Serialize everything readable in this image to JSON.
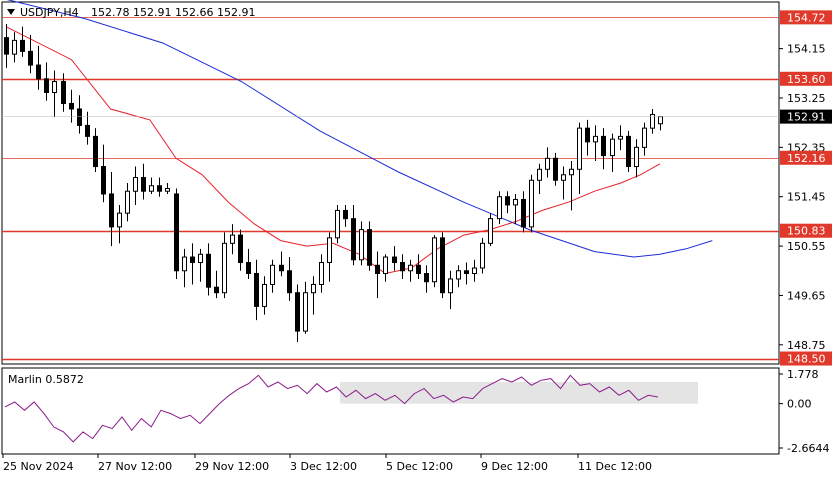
{
  "header": {
    "symbol": "USDJPY,H4",
    "ohlc": "152.78 152.91 152.66 152.91"
  },
  "indicator": {
    "name": "Marlin 0.5872",
    "ticks": [
      "1.778",
      "0.00",
      "-2.6644"
    ]
  },
  "colors": {
    "candle": "#000000",
    "ma_fast": "#e8202a",
    "ma_slow": "#1a2bd6",
    "level_line": "#e0382a",
    "level_box": "#e0382a",
    "marlin": "#8b1a8b",
    "marlin_zone": "#d9d9d9"
  },
  "chart_data": {
    "type": "candlestick",
    "symbol": "USDJPY",
    "timeframe": "H4",
    "ylim": [
      148.4,
      155.0
    ],
    "price_ticks": [
      "154.15",
      "153.25",
      "152.35",
      "151.45",
      "150.55",
      "149.65",
      "148.75"
    ],
    "x_labels": [
      "25 Nov 2024",
      "27 Nov 12:00",
      "29 Nov 12:00",
      "3 Dec 12:00",
      "5 Dec 12:00",
      "9 Dec 12:00",
      "11 Dec 12:00"
    ],
    "current_price": "152.91",
    "levels": [
      {
        "label": "154.72",
        "value": 154.72,
        "style": "thin"
      },
      {
        "label": "153.60",
        "value": 153.6,
        "style": "thick"
      },
      {
        "label": "152.16",
        "value": 152.16,
        "style": "thin"
      },
      {
        "label": "150.83",
        "value": 150.83,
        "style": "thick"
      },
      {
        "label": "148.50",
        "value": 148.5,
        "style": "thick"
      }
    ],
    "candles": [
      [
        154.35,
        154.6,
        153.8,
        154.05
      ],
      [
        154.05,
        154.45,
        153.9,
        154.3
      ],
      [
        154.3,
        154.55,
        154.0,
        154.1
      ],
      [
        154.1,
        154.4,
        153.7,
        153.85
      ],
      [
        153.85,
        154.2,
        153.4,
        153.6
      ],
      [
        153.6,
        153.9,
        153.2,
        153.35
      ],
      [
        153.35,
        153.75,
        152.9,
        153.55
      ],
      [
        153.55,
        153.7,
        153.0,
        153.15
      ],
      [
        153.15,
        153.4,
        152.8,
        153.05
      ],
      [
        153.05,
        153.3,
        152.6,
        152.75
      ],
      [
        152.75,
        153.0,
        152.4,
        152.55
      ],
      [
        152.55,
        152.7,
        151.9,
        152.0
      ],
      [
        152.0,
        152.4,
        151.35,
        151.5
      ],
      [
        151.5,
        151.9,
        150.55,
        150.9
      ],
      [
        150.9,
        151.3,
        150.6,
        151.15
      ],
      [
        151.15,
        151.7,
        151.0,
        151.55
      ],
      [
        151.55,
        152.0,
        151.3,
        151.8
      ],
      [
        151.8,
        152.05,
        151.4,
        151.55
      ],
      [
        151.55,
        151.8,
        151.5,
        151.65
      ],
      [
        151.65,
        151.8,
        151.45,
        151.55
      ],
      [
        151.55,
        151.7,
        151.5,
        151.6
      ],
      [
        151.5,
        151.6,
        149.95,
        150.1
      ],
      [
        150.1,
        150.5,
        149.8,
        150.35
      ],
      [
        150.35,
        150.6,
        149.85,
        150.25
      ],
      [
        150.25,
        150.5,
        149.9,
        150.4
      ],
      [
        150.4,
        150.6,
        149.65,
        149.8
      ],
      [
        149.8,
        150.1,
        149.6,
        149.7
      ],
      [
        149.7,
        150.8,
        149.6,
        150.6
      ],
      [
        150.6,
        150.95,
        150.4,
        150.75
      ],
      [
        150.75,
        150.85,
        150.1,
        150.25
      ],
      [
        150.25,
        150.5,
        149.95,
        150.05
      ],
      [
        150.05,
        150.3,
        149.2,
        149.45
      ],
      [
        149.45,
        150.0,
        149.3,
        149.85
      ],
      [
        149.85,
        150.3,
        149.7,
        150.2
      ],
      [
        150.2,
        150.45,
        150.0,
        150.1
      ],
      [
        150.1,
        150.35,
        149.55,
        149.7
      ],
      [
        149.7,
        149.85,
        148.8,
        149.0
      ],
      [
        149.0,
        149.9,
        148.95,
        149.7
      ],
      [
        149.7,
        150.0,
        149.3,
        149.85
      ],
      [
        149.85,
        150.4,
        149.7,
        150.25
      ],
      [
        150.25,
        150.8,
        149.9,
        150.7
      ],
      [
        150.7,
        151.3,
        150.6,
        151.2
      ],
      [
        151.2,
        151.3,
        150.9,
        151.05
      ],
      [
        151.05,
        151.3,
        150.2,
        150.3
      ],
      [
        150.3,
        151.0,
        150.2,
        150.85
      ],
      [
        150.85,
        151.0,
        150.1,
        150.2
      ],
      [
        150.2,
        150.45,
        149.6,
        150.05
      ],
      [
        150.05,
        150.4,
        149.9,
        150.35
      ],
      [
        150.35,
        150.55,
        150.1,
        150.25
      ],
      [
        150.25,
        150.4,
        149.95,
        150.1
      ],
      [
        150.1,
        150.3,
        149.9,
        150.2
      ],
      [
        150.2,
        150.4,
        149.95,
        150.05
      ],
      [
        150.05,
        150.2,
        149.7,
        149.9
      ],
      [
        149.9,
        150.75,
        149.8,
        150.7
      ],
      [
        150.7,
        150.8,
        149.6,
        149.7
      ],
      [
        149.7,
        150.1,
        149.4,
        149.95
      ],
      [
        149.95,
        150.2,
        149.8,
        150.1
      ],
      [
        150.1,
        150.25,
        149.85,
        150.05
      ],
      [
        150.05,
        150.3,
        149.9,
        150.15
      ],
      [
        150.15,
        150.7,
        150.05,
        150.6
      ],
      [
        150.6,
        151.15,
        150.55,
        151.05
      ],
      [
        151.05,
        151.55,
        150.95,
        151.45
      ],
      [
        151.45,
        151.55,
        151.15,
        151.3
      ],
      [
        151.3,
        151.5,
        150.95,
        151.4
      ],
      [
        151.4,
        151.55,
        150.8,
        150.9
      ],
      [
        150.9,
        151.85,
        150.8,
        151.75
      ],
      [
        151.75,
        152.05,
        151.5,
        151.95
      ],
      [
        151.95,
        152.35,
        151.8,
        152.15
      ],
      [
        152.15,
        152.25,
        151.65,
        151.75
      ],
      [
        151.75,
        152.0,
        151.4,
        151.85
      ],
      [
        151.85,
        152.1,
        151.2,
        151.95
      ],
      [
        151.95,
        152.8,
        151.5,
        152.7
      ],
      [
        152.7,
        152.85,
        152.2,
        152.45
      ],
      [
        152.45,
        152.75,
        152.1,
        152.55
      ],
      [
        152.55,
        152.7,
        151.95,
        152.2
      ],
      [
        152.2,
        152.6,
        151.9,
        152.5
      ],
      [
        152.5,
        152.75,
        152.3,
        152.55
      ],
      [
        152.55,
        152.65,
        151.9,
        152.0
      ],
      [
        152.0,
        152.5,
        151.8,
        152.35
      ],
      [
        152.35,
        152.8,
        152.2,
        152.7
      ],
      [
        152.7,
        153.05,
        152.6,
        152.95
      ],
      [
        152.78,
        152.91,
        152.66,
        152.91
      ]
    ],
    "ma_fast": [
      [
        0,
        154.55
      ],
      [
        10,
        153.95
      ],
      [
        16,
        153.05
      ],
      [
        22,
        152.85
      ],
      [
        26,
        152.15
      ],
      [
        30,
        151.85
      ],
      [
        34,
        151.35
      ],
      [
        38,
        150.95
      ],
      [
        42,
        150.65
      ],
      [
        46,
        150.55
      ],
      [
        50,
        150.6
      ],
      [
        54,
        150.4
      ],
      [
        58,
        150.05
      ],
      [
        62,
        150.15
      ],
      [
        66,
        150.5
      ],
      [
        70,
        150.75
      ],
      [
        74,
        150.85
      ],
      [
        78,
        151.0
      ],
      [
        82,
        151.2
      ],
      [
        86,
        151.35
      ],
      [
        90,
        151.55
      ],
      [
        94,
        151.7
      ],
      [
        97,
        151.85
      ],
      [
        100,
        152.05
      ]
    ],
    "ma_slow": [
      [
        0,
        155.05
      ],
      [
        12,
        154.7
      ],
      [
        24,
        154.25
      ],
      [
        36,
        153.55
      ],
      [
        48,
        152.65
      ],
      [
        60,
        151.9
      ],
      [
        70,
        151.35
      ],
      [
        80,
        150.85
      ],
      [
        90,
        150.45
      ],
      [
        96,
        150.35
      ],
      [
        100,
        150.4
      ],
      [
        104,
        150.5
      ],
      [
        108,
        150.65
      ]
    ],
    "marlin": {
      "ylim": [
        -2.6644,
        1.778
      ],
      "zone": [
        0.0,
        1.3
      ],
      "values": [
        [
          0,
          -0.2
        ],
        [
          3,
          0.1
        ],
        [
          6,
          -0.4
        ],
        [
          9,
          0.1
        ],
        [
          12,
          -0.6
        ],
        [
          15,
          -1.4
        ],
        [
          18,
          -1.7
        ],
        [
          21,
          -2.3
        ],
        [
          24,
          -1.7
        ],
        [
          27,
          -2.1
        ],
        [
          30,
          -1.3
        ],
        [
          33,
          -1.5
        ],
        [
          36,
          -0.8
        ],
        [
          39,
          -1.6
        ],
        [
          42,
          -0.9
        ],
        [
          45,
          -1.4
        ],
        [
          48,
          -0.4
        ],
        [
          51,
          -0.6
        ],
        [
          54,
          -0.9
        ],
        [
          57,
          -0.7
        ],
        [
          60,
          -1.2
        ],
        [
          63,
          -0.6
        ],
        [
          66,
          0.0
        ],
        [
          69,
          0.5
        ],
        [
          72,
          0.9
        ],
        [
          75,
          1.2
        ],
        [
          78,
          1.7
        ],
        [
          81,
          1.0
        ],
        [
          84,
          1.3
        ],
        [
          87,
          0.9
        ],
        [
          90,
          1.1
        ],
        [
          93,
          0.6
        ],
        [
          96,
          1.2
        ],
        [
          99,
          0.7
        ],
        [
          102,
          1.0
        ],
        [
          105,
          0.4
        ],
        [
          108,
          0.8
        ],
        [
          111,
          0.3
        ],
        [
          114,
          0.6
        ],
        [
          117,
          0.2
        ],
        [
          120,
          0.5
        ],
        [
          123,
          0.0
        ],
        [
          126,
          0.6
        ],
        [
          129,
          0.9
        ],
        [
          132,
          0.3
        ],
        [
          135,
          0.5
        ],
        [
          138,
          0.1
        ],
        [
          141,
          0.4
        ],
        [
          144,
          0.3
        ],
        [
          147,
          0.9
        ],
        [
          150,
          1.2
        ],
        [
          153,
          1.5
        ],
        [
          156,
          1.3
        ],
        [
          159,
          1.6
        ],
        [
          162,
          1.1
        ],
        [
          165,
          1.4
        ],
        [
          168,
          1.5
        ],
        [
          171,
          0.9
        ],
        [
          174,
          1.7
        ],
        [
          177,
          1.1
        ],
        [
          180,
          1.2
        ],
        [
          183,
          0.7
        ],
        [
          186,
          1.0
        ],
        [
          189,
          0.5
        ],
        [
          192,
          0.8
        ],
        [
          195,
          0.2
        ],
        [
          198,
          0.5
        ],
        [
          201,
          0.4
        ]
      ]
    }
  }
}
